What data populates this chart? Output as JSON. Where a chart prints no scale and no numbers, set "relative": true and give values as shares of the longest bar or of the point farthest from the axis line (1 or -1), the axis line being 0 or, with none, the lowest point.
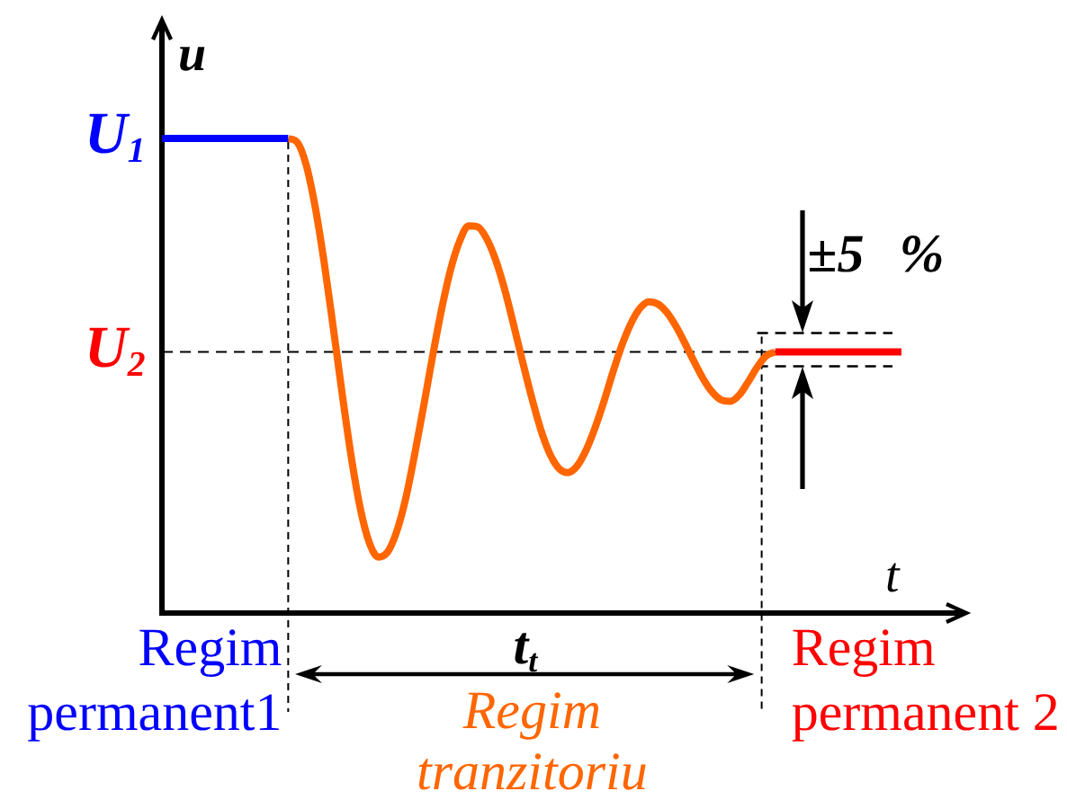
{
  "chart_data": {
    "type": "line",
    "relative": true,
    "categories": [
      null,
      null,
      null,
      null,
      null,
      null,
      null,
      null,
      null,
      null,
      null,
      null,
      null,
      null,
      null,
      null,
      null,
      null,
      null,
      null,
      null,
      null,
      null,
      null,
      null,
      null,
      null,
      null,
      null,
      null,
      null,
      null,
      null,
      null,
      null,
      null,
      null,
      null,
      null,
      null,
      null,
      null,
      null,
      null,
      null,
      null,
      null,
      null,
      null,
      null,
      null,
      null,
      null,
      null,
      null,
      null,
      null,
      null,
      null,
      null,
      null,
      null,
      null,
      null,
      null,
      null,
      null,
      null,
      null,
      null,
      null,
      null,
      null,
      null,
      null,
      null,
      null,
      null,
      null,
      null,
      null,
      null,
      null
    ],
    "series": [
      {
        "color": "#0000ff",
        "values": [
          1,
          1,
          1,
          1,
          1,
          1,
          1,
          1,
          1,
          1,
          1,
          1,
          1,
          1,
          1,
          null,
          null,
          null,
          null,
          null,
          null,
          null,
          null,
          null,
          null,
          null,
          null,
          null,
          null,
          null,
          null,
          null,
          null,
          null,
          null,
          null,
          null,
          null,
          null,
          null,
          null,
          null,
          null,
          null,
          null,
          null,
          null,
          null,
          null,
          null,
          null,
          null,
          null,
          null,
          null,
          null,
          null,
          null,
          null,
          null,
          null,
          null,
          null,
          null,
          null,
          null,
          null,
          null,
          null,
          null,
          null,
          null,
          null,
          null,
          null,
          null,
          null,
          null,
          null,
          null,
          null,
          null,
          null
        ]
      },
      {
        "color": "#ff6600",
        "values": [
          null,
          null,
          null,
          null,
          null,
          null,
          null,
          null,
          null,
          null,
          null,
          null,
          null,
          null,
          1,
          0.992,
          0.944,
          0.855,
          0.737,
          0.601,
          0.46,
          0.328,
          0.22,
          0.148,
          0.118,
          0.128,
          0.17,
          0.239,
          0.332,
          0.434,
          0.54,
          0.639,
          0.723,
          0.783,
          0.816,
          0.814,
          0.789,
          0.744,
          0.682,
          0.607,
          0.529,
          0.454,
          0.387,
          0.336,
          0.305,
          0.296,
          0.309,
          0.342,
          0.389,
          0.445,
          0.507,
          0.564,
          0.61,
          0.642,
          0.656,
          0.651,
          0.633,
          0.604,
          0.568,
          0.53,
          0.494,
          0.466,
          0.449,
          0.446,
          0.459,
          0.487,
          0.518,
          0.542,
          0.55,
          null,
          null,
          null,
          null,
          null,
          null,
          null,
          null,
          null,
          null,
          null,
          null,
          null,
          null
        ]
      },
      {
        "color": "#ff0000",
        "values": [
          null,
          null,
          null,
          null,
          null,
          null,
          null,
          null,
          null,
          null,
          null,
          null,
          null,
          null,
          null,
          null,
          null,
          null,
          null,
          null,
          null,
          null,
          null,
          null,
          null,
          null,
          null,
          null,
          null,
          null,
          null,
          null,
          null,
          null,
          null,
          null,
          null,
          null,
          null,
          null,
          null,
          null,
          null,
          null,
          null,
          null,
          null,
          null,
          null,
          null,
          null,
          null,
          null,
          null,
          null,
          null,
          null,
          null,
          null,
          null,
          null,
          null,
          null,
          null,
          null,
          null,
          null,
          null,
          0.55,
          0.55,
          0.55,
          0.55,
          0.55,
          0.55,
          0.55,
          0.55,
          0.55,
          0.55,
          0.55,
          0.55,
          0.55,
          0.55,
          0.55
        ]
      },
      {
        "color": "#000000",
        "line_style": "dashed",
        "values": [
          null,
          null,
          null,
          null,
          null,
          null,
          null,
          null,
          null,
          null,
          null,
          null,
          null,
          null,
          null,
          null,
          null,
          null,
          null,
          null,
          null,
          null,
          null,
          null,
          null,
          null,
          null,
          null,
          null,
          null,
          null,
          null,
          null,
          null,
          null,
          null,
          null,
          null,
          null,
          null,
          null,
          null,
          null,
          null,
          null,
          null,
          null,
          null,
          null,
          null,
          null,
          null,
          null,
          null,
          null,
          null,
          null,
          null,
          null,
          null,
          null,
          null,
          null,
          null,
          null,
          null,
          0.59,
          0.59,
          0.59,
          0.59,
          0.59,
          0.59,
          0.59,
          0.59,
          0.59,
          0.59,
          0.59,
          0.59,
          0.59,
          0.59,
          0.59,
          0.59,
          null
        ]
      },
      {
        "color": "#000000",
        "line_style": "dashed",
        "values": [
          null,
          null,
          null,
          null,
          null,
          null,
          null,
          null,
          null,
          null,
          null,
          null,
          null,
          null,
          null,
          null,
          null,
          null,
          null,
          null,
          null,
          null,
          null,
          null,
          null,
          null,
          null,
          null,
          null,
          null,
          null,
          null,
          null,
          null,
          null,
          null,
          null,
          null,
          null,
          null,
          null,
          null,
          null,
          null,
          null,
          null,
          null,
          null,
          null,
          null,
          null,
          null,
          null,
          null,
          null,
          null,
          null,
          null,
          null,
          null,
          null,
          null,
          null,
          null,
          null,
          null,
          0.52,
          0.52,
          0.52,
          0.52,
          0.52,
          0.52,
          0.52,
          0.52,
          0.52,
          0.52,
          0.52,
          0.52,
          0.52,
          0.52,
          0.52,
          0.52,
          null
        ]
      }
    ],
    "xlabel": "t",
    "ylabel": "u",
    "annotations": [
      "U$_{1}$",
      "t$_{t}$",
      "±5 %",
      "Regim permanent1",
      "Regim tranzitoriu",
      "Regim permanent 2"
    ],
    "ref_lines": [
      {
        "axis": "y",
        "value": 0.55,
        "label": "U$_{2}$",
        "line_style": "dashed"
      }
    ]
  }
}
